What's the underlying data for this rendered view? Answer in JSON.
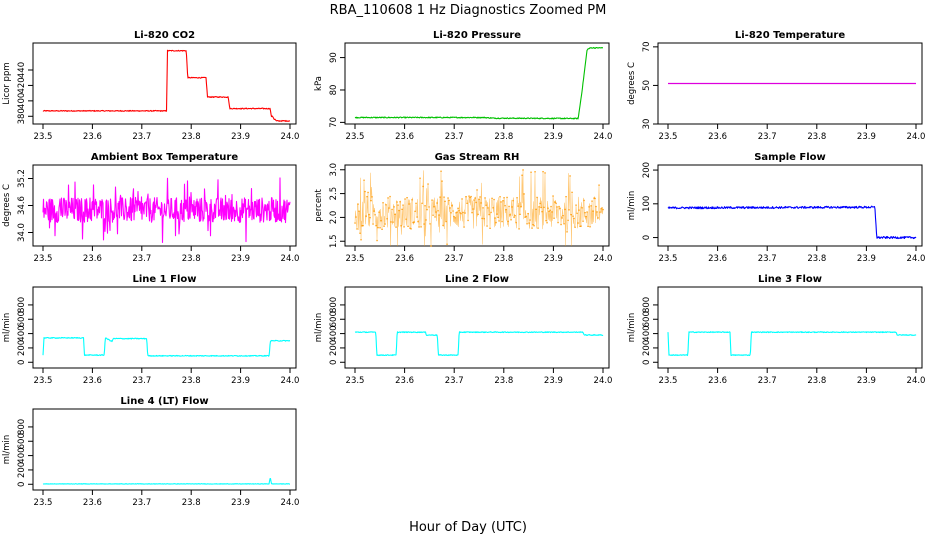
{
  "figure": {
    "title": "RBA_110608  1 Hz Diagnostics Zoomed PM",
    "xlabel": "Hour of Day (UTC)"
  },
  "chart_data": [
    {
      "id": "co2",
      "type": "line",
      "title": "Li-820 CO2",
      "ylabel": "Licor ppm",
      "color": "#ff0000",
      "noise": 0.6,
      "xlim": [
        23.5,
        24.0
      ],
      "ylim": [
        370,
        475
      ],
      "xticks": [
        23.5,
        23.6,
        23.7,
        23.8,
        23.9,
        24.0
      ],
      "yticks": [
        380,
        400,
        420,
        440
      ],
      "x": [
        23.5,
        23.75,
        23.752,
        23.79,
        23.793,
        23.83,
        23.833,
        23.875,
        23.878,
        23.96,
        23.962,
        23.965,
        23.968,
        23.97,
        23.972,
        24.0
      ],
      "y": [
        387,
        387,
        465,
        465,
        430,
        430,
        405,
        405,
        390,
        390,
        380,
        380,
        376,
        376,
        374,
        374
      ]
    },
    {
      "id": "pressure",
      "type": "line",
      "title": "Li-820 Pressure",
      "ylabel": "kPa",
      "color": "#00c000",
      "noise": 0.15,
      "xlim": [
        23.5,
        24.0
      ],
      "ylim": [
        69.5,
        94.5
      ],
      "xticks": [
        23.5,
        23.6,
        23.7,
        23.8,
        23.9,
        24.0
      ],
      "yticks": [
        70,
        80,
        90
      ],
      "x": [
        23.5,
        23.76,
        23.78,
        23.95,
        23.958,
        23.968,
        23.975,
        24.0
      ],
      "y": [
        71.5,
        71.5,
        71.3,
        71.2,
        80,
        92.5,
        93.0,
        93.0
      ]
    },
    {
      "id": "licor_temp",
      "type": "line",
      "title": "Li-820 Temperature",
      "ylabel": "degrees C",
      "color": "#dd00dd",
      "noise": 0,
      "xlim": [
        23.5,
        24.0
      ],
      "ylim": [
        30,
        72
      ],
      "xticks": [
        23.5,
        23.6,
        23.7,
        23.8,
        23.9,
        24.0
      ],
      "yticks": [
        30,
        50,
        70
      ],
      "x": [
        23.5,
        24.0
      ],
      "y": [
        51,
        51
      ]
    },
    {
      "id": "box_temp",
      "type": "line",
      "title": "Ambient Box Temperature",
      "ylabel": "degrees C",
      "color": "#ff00ff",
      "noise": 0.28,
      "xlim": [
        23.5,
        24.0
      ],
      "ylim": [
        33.7,
        35.5
      ],
      "xticks": [
        23.5,
        23.6,
        23.7,
        23.8,
        23.9,
        24.0
      ],
      "yticks": [
        34.0,
        34.6,
        35.2
      ],
      "x": [
        23.5,
        24.0
      ],
      "y": [
        34.5,
        34.5
      ]
    },
    {
      "id": "gas_rh",
      "type": "scatter",
      "title": "Gas Stream RH",
      "ylabel": "percent",
      "color": "#ff9900",
      "noise": 0.35,
      "xlim": [
        23.5,
        24.0
      ],
      "ylim": [
        1.4,
        3.1
      ],
      "xticks": [
        23.5,
        23.6,
        23.7,
        23.8,
        23.9,
        24.0
      ],
      "yticks": [
        1.5,
        2.0,
        2.5,
        3.0
      ],
      "x": [
        23.5,
        24.0
      ],
      "y": [
        2.1,
        2.1
      ]
    },
    {
      "id": "sample_flow",
      "type": "line",
      "title": "Sample Flow",
      "ylabel": "ml/min",
      "color": "#0000ff",
      "noise": 3,
      "xlim": [
        23.5,
        24.0
      ],
      "ylim": [
        -25,
        215
      ],
      "xticks": [
        23.5,
        23.6,
        23.7,
        23.8,
        23.9,
        24.0
      ],
      "yticks": [
        0,
        100,
        200
      ],
      "x": [
        23.5,
        23.917,
        23.921,
        24.0
      ],
      "y": [
        88,
        90,
        0,
        0
      ]
    },
    {
      "id": "line1",
      "type": "line",
      "title": "Line 1 Flow",
      "ylabel": "ml/min",
      "color": "#00ffff",
      "noise": 6,
      "xlim": [
        23.5,
        24.0
      ],
      "ylim": [
        -80,
        1050
      ],
      "xticks": [
        23.5,
        23.6,
        23.7,
        23.8,
        23.9,
        24.0
      ],
      "yticks": [
        0,
        200,
        400,
        600,
        800
      ],
      "x": [
        23.5,
        23.502,
        23.582,
        23.584,
        23.624,
        23.626,
        23.64,
        23.642,
        23.71,
        23.712,
        23.958,
        23.96,
        24.0
      ],
      "y": [
        100,
        340,
        340,
        100,
        100,
        340,
        290,
        330,
        330,
        90,
        90,
        300,
        300
      ]
    },
    {
      "id": "line2",
      "type": "line",
      "title": "Line 2 Flow",
      "ylabel": "ml/min",
      "color": "#00ffff",
      "noise": 6,
      "xlim": [
        23.5,
        24.0
      ],
      "ylim": [
        -80,
        1050
      ],
      "xticks": [
        23.5,
        23.6,
        23.7,
        23.8,
        23.9,
        24.0
      ],
      "yticks": [
        0,
        200,
        400,
        600,
        800
      ],
      "x": [
        23.5,
        23.542,
        23.544,
        23.583,
        23.585,
        23.642,
        23.644,
        23.666,
        23.668,
        23.708,
        23.71,
        23.96,
        23.962,
        24.0
      ],
      "y": [
        420,
        420,
        100,
        100,
        420,
        420,
        380,
        380,
        100,
        100,
        420,
        420,
        380,
        380
      ]
    },
    {
      "id": "line3",
      "type": "line",
      "title": "Line 3 Flow",
      "ylabel": "ml/min",
      "color": "#00ffff",
      "noise": 6,
      "xlim": [
        23.5,
        24.0
      ],
      "ylim": [
        -80,
        1050
      ],
      "xticks": [
        23.5,
        23.6,
        23.7,
        23.8,
        23.9,
        24.0
      ],
      "yticks": [
        0,
        200,
        400,
        600,
        800
      ],
      "x": [
        23.5,
        23.5,
        23.502,
        23.54,
        23.542,
        23.625,
        23.627,
        23.666,
        23.668,
        23.96,
        23.962,
        24.0
      ],
      "y": [
        90,
        420,
        100,
        100,
        420,
        420,
        100,
        100,
        420,
        420,
        380,
        380
      ]
    },
    {
      "id": "line4",
      "type": "line",
      "title": "Line 4 (LT) Flow",
      "ylabel": "ml/min",
      "color": "#00ffff",
      "noise": 3,
      "xlim": [
        23.5,
        24.0
      ],
      "ylim": [
        -80,
        1050
      ],
      "xticks": [
        23.5,
        23.6,
        23.7,
        23.8,
        23.9,
        24.0
      ],
      "yticks": [
        0,
        200,
        400,
        600,
        800
      ],
      "x": [
        23.5,
        23.958,
        23.959,
        23.961,
        23.962,
        24.0
      ],
      "y": [
        5,
        5,
        80,
        80,
        5,
        5
      ]
    }
  ]
}
